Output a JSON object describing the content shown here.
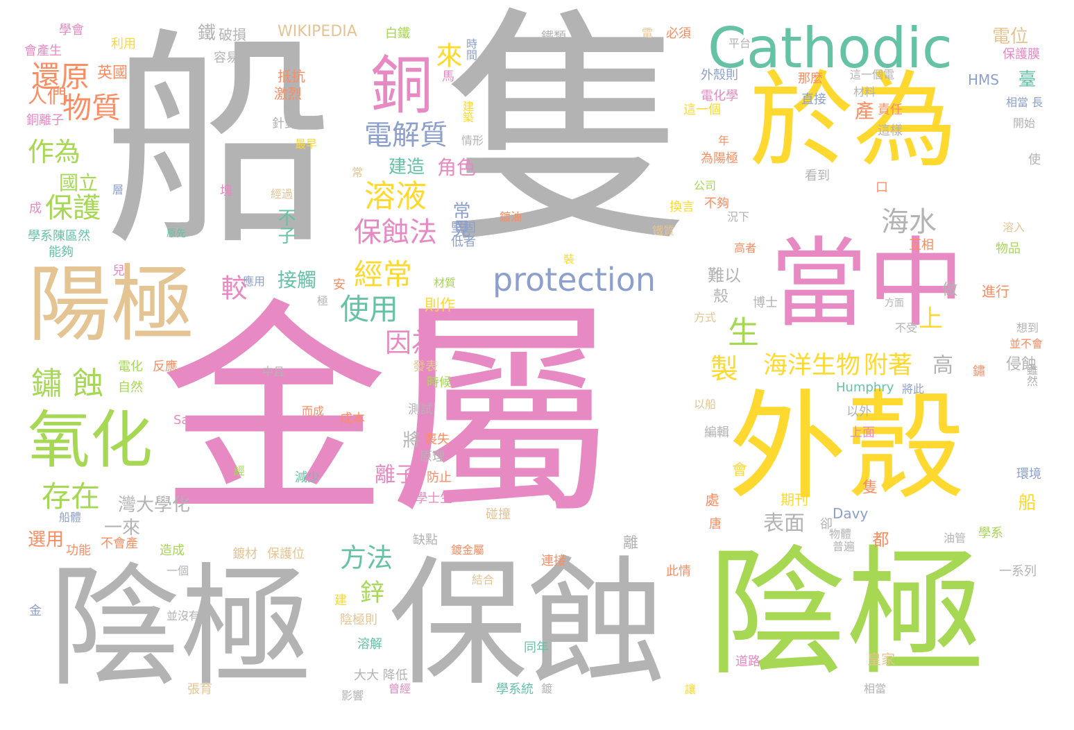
{
  "colors": {
    "gray": "#b3b3b3",
    "pink": "#e78ac3",
    "green": "#a6d854",
    "yellow": "#ffd92f",
    "teal": "#66c2a5",
    "blue": "#8da0cb",
    "tan": "#e5c494",
    "orange": "#fc8d62",
    "background": "#ffffff"
  },
  "words": {
    "w001": "船",
    "w002": "隻",
    "w003": "金屬",
    "w004": "陰極",
    "w005": "保蝕",
    "w006": "陰極",
    "w007": "外殼",
    "w008": "於為",
    "w009": "當中",
    "w010": "陽極",
    "w011": "Cathodic",
    "w012": "protection",
    "w013": "銅",
    "w014": "氧化",
    "w015": "還原",
    "w016": "物質",
    "w017": "作為",
    "w018": "保護",
    "w019": "鏽 蝕",
    "w020": "存在",
    "w021": "電解質",
    "w022": "溶液",
    "w023": "保蝕法",
    "w024": "經常",
    "w025": "使用",
    "w026": "因為",
    "w027": "方法",
    "w028": "海水",
    "w029": "海洋生物",
    "w030": "附著",
    "w031": "表面",
    "w032": "來",
    "w033": "較",
    "w034": "生",
    "w035": "製",
    "w036": "上",
    "w037": "鋅",
    "w038": "離子",
    "w039": "角色",
    "w040": "建造",
    "w041": "常見",
    "w042": "接觸",
    "w043": "國立",
    "w044": "人們",
    "w045": "英國",
    "w046": "銅離子",
    "w047": "學會",
    "w048": "會產生",
    "w049": "利用",
    "w050": "鐵",
    "w051": "破損",
    "w052": "容易",
    "w053": "WIKIPEDIA",
    "w054": "白鐵",
    "w055": "時間",
    "w056": "鐵類",
    "w057": "電",
    "w058": "必須",
    "w059": "平台",
    "w060": "電位",
    "w061": "保護膜",
    "w062": "抵抗",
    "w063": "激烈",
    "w064": "馬",
    "w065": "外殼則",
    "w066": "那麼",
    "w067": "這一個電",
    "w068": "HMS",
    "w069": "臺",
    "w070": "電化學",
    "w071": "直接",
    "w072": "材料",
    "w073": "責任",
    "w074": "相當 長",
    "w075": "開始",
    "w076": "針對",
    "w077": "情形",
    "w078": "建築",
    "w079": "這一個",
    "w080": "產",
    "w081": "這樣",
    "w082": "最早",
    "w083": "年",
    "w084": "為陽極",
    "w085": "使",
    "w086": "常",
    "w087": "塊",
    "w088": "經過",
    "w089": "公司",
    "w090": "看到",
    "w091": "口",
    "w092": "成",
    "w093": "層",
    "w094": "原先",
    "w095": "鍍油",
    "w096": "換言",
    "w097": "不夠",
    "w098": "況下",
    "w099": "溶入",
    "w100": "學系陳區然",
    "w101": "能夠",
    "w102": "不子",
    "w103": "堅固",
    "w104": "低者",
    "w105": "鐵質",
    "w106": "高者",
    "w107": "互相",
    "w108": "物品",
    "w109": "兒",
    "w110": "應用",
    "w111": "安",
    "w112": "材質",
    "w113": "則作",
    "w114": "裝",
    "w115": "難以",
    "w116": "做",
    "w117": "進行",
    "w118": "極",
    "w119": "殼",
    "w120": "博士",
    "w121": "方面",
    "w122": "方式",
    "w123": "不受",
    "w124": "想到",
    "w125": "並不會",
    "w126": "電化",
    "w127": "反應",
    "w128": "自然",
    "w129": "中且",
    "w130": "發表",
    "w131": "時候",
    "w132": "高",
    "w133": "侵蝕",
    "w134": "將此",
    "w135": "Humphry",
    "w136": "鏽",
    "w137": "雖然",
    "w138": "Samarang",
    "w139": "而成",
    "w140": "成本",
    "w141": "測試",
    "w142": "以外",
    "w143": "以船",
    "w144": "編輯",
    "w145": "將",
    "w146": "喪失",
    "w147": "原理",
    "w148": "上面",
    "w149": "經",
    "w150": "減少",
    "w151": "防止",
    "w152": "會",
    "w153": "隻",
    "w154": "環境",
    "w155": "灣大學化",
    "w156": "學士生",
    "w157": "期刊",
    "w158": "處",
    "w159": "船",
    "w160": "船體",
    "w161": "一來",
    "w162": "碰撞",
    "w163": "Davy",
    "w164": "唐",
    "w165": "卻",
    "w166": "選用",
    "w167": "功能",
    "w168": "不會產",
    "w169": "缺點",
    "w170": "鍍金屬",
    "w171": "都",
    "w172": "物體",
    "w173": "油管",
    "w174": "學系",
    "w175": "普遍",
    "w176": "造成",
    "w177": "鍍材",
    "w178": "保護位",
    "w179": "離",
    "w180": "連接",
    "w181": "此情",
    "w182": "一個",
    "w183": "一系列",
    "w184": "結合",
    "w185": "金",
    "w186": "並沒有",
    "w187": "陰極則",
    "w188": "建",
    "w189": "溶解",
    "w190": "同年",
    "w191": "皇家",
    "w192": "大大 降低",
    "w193": "道路",
    "w194": "影響",
    "w195": "曾經",
    "w196": "學系統",
    "w197": "鍍",
    "w198": "讓",
    "w199": "相當",
    "w200": "張育"
  }
}
